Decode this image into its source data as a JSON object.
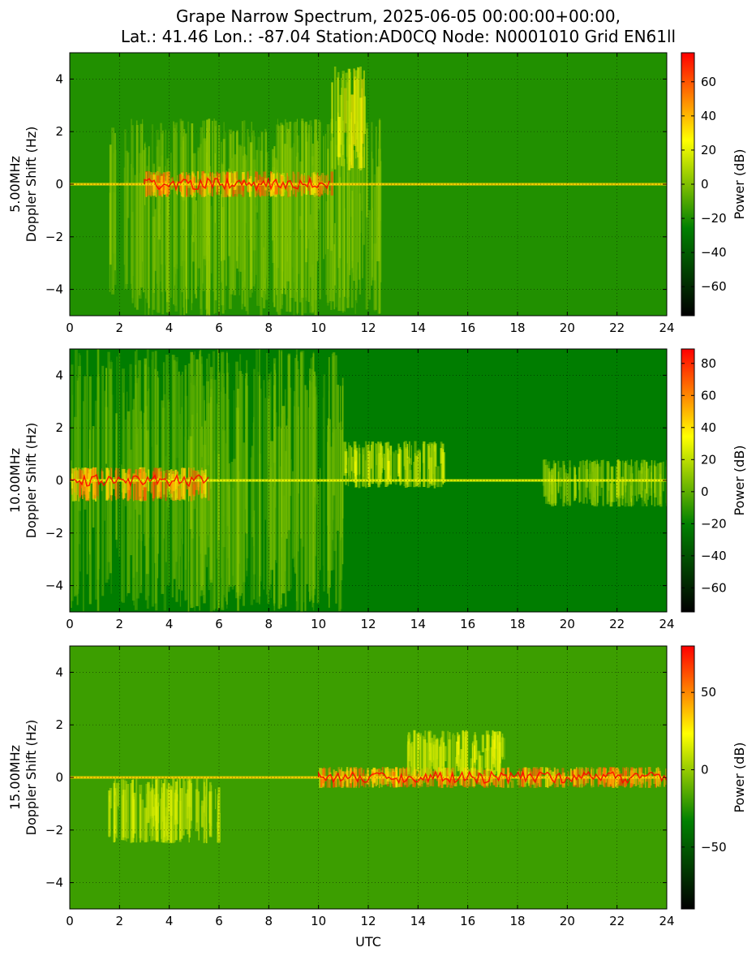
{
  "figure": {
    "title_line1": "Grape Narrow Spectrum, 2025-06-05 00:00:00+00:00,",
    "title_line2": "Lat.: 41.46 Lon.: -87.04 Station:AD0CQ Node: N0001010 Grid EN61ll",
    "xlabel": "UTC"
  },
  "chart_data": [
    {
      "type": "heatmap",
      "panel": "5.00MHz",
      "ylabel_line1": "5.00MHz",
      "ylabel_line2": "Doppler Shift (Hz)",
      "xlim": [
        0,
        24
      ],
      "ylim": [
        -5,
        5
      ],
      "xticks": [
        0,
        2,
        4,
        6,
        8,
        10,
        12,
        14,
        16,
        18,
        20,
        22,
        24
      ],
      "yticks": [
        -4,
        -2,
        0,
        2,
        4
      ],
      "grid": true,
      "colorbar": {
        "label": "Power (dB)",
        "range": [
          -77,
          77
        ],
        "ticks": [
          -60,
          -40,
          -20,
          0,
          20,
          40,
          60
        ],
        "colors": [
          "#000000",
          "#008000",
          "#ffff00",
          "#ff0000"
        ]
      },
      "carrier_hz": 0,
      "features": [
        {
          "utc": [
            1.5,
            12.5
          ],
          "doppler": [
            -5,
            2.5
          ],
          "power_db": 25,
          "desc": "broad spread"
        },
        {
          "utc": [
            10.5,
            11.8
          ],
          "doppler": [
            0.5,
            4.5
          ],
          "power_db": 45,
          "desc": "raised trace"
        },
        {
          "utc": [
            3,
            10.5
          ],
          "doppler": [
            -0.5,
            0.5
          ],
          "power_db": 70,
          "desc": "strong carrier"
        }
      ]
    },
    {
      "type": "heatmap",
      "panel": "10.00MHz",
      "ylabel_line1": "10.00MHz",
      "ylabel_line2": "Doppler Shift (Hz)",
      "xlim": [
        0,
        24
      ],
      "ylim": [
        -5,
        5
      ],
      "xticks": [
        0,
        2,
        4,
        6,
        8,
        10,
        12,
        14,
        16,
        18,
        20,
        22,
        24
      ],
      "yticks": [
        -4,
        -2,
        0,
        2,
        4
      ],
      "grid": true,
      "colorbar": {
        "label": "Power (dB)",
        "range": [
          -75,
          89
        ],
        "ticks": [
          -60,
          -40,
          -20,
          0,
          20,
          40,
          60,
          80
        ],
        "colors": [
          "#000000",
          "#008000",
          "#ffff00",
          "#ff0000"
        ]
      },
      "carrier_hz": 0,
      "features": [
        {
          "utc": [
            0,
            11
          ],
          "doppler": [
            -5,
            5
          ],
          "power_db": 30,
          "desc": "broad spread"
        },
        {
          "utc": [
            0,
            5.6
          ],
          "doppler": [
            -0.8,
            0.5
          ],
          "power_db": 80,
          "desc": "strong carrier"
        },
        {
          "utc": [
            11,
            15
          ],
          "doppler": [
            -0.3,
            1.5
          ],
          "power_db": 50,
          "desc": "raised trace"
        },
        {
          "utc": [
            19,
            24
          ],
          "doppler": [
            -1,
            0.8
          ],
          "power_db": 40,
          "desc": "spread"
        }
      ]
    },
    {
      "type": "heatmap",
      "panel": "15.00MHz",
      "ylabel_line1": "15.00MHz",
      "ylabel_line2": "Doppler Shift (Hz)",
      "xlim": [
        0,
        24
      ],
      "ylim": [
        -5,
        5
      ],
      "xticks": [
        0,
        2,
        4,
        6,
        8,
        10,
        12,
        14,
        16,
        18,
        20,
        22,
        24
      ],
      "yticks": [
        -4,
        -2,
        0,
        2,
        4
      ],
      "grid": true,
      "colorbar": {
        "label": "Power (dB)",
        "range": [
          -90,
          80
        ],
        "ticks": [
          -50,
          0,
          50
        ],
        "colors": [
          "#000000",
          "#008000",
          "#ffff00",
          "#ff0000"
        ]
      },
      "carrier_hz": 0,
      "features": [
        {
          "utc": [
            1.5,
            6
          ],
          "doppler": [
            -2.5,
            0
          ],
          "power_db": 35,
          "desc": "spread below carrier"
        },
        {
          "utc": [
            10,
            24
          ],
          "doppler": [
            -0.4,
            0.4
          ],
          "power_db": 70,
          "desc": "strong carrier"
        },
        {
          "utc": [
            13.5,
            17.5
          ],
          "doppler": [
            0,
            1.8
          ],
          "power_db": 40,
          "desc": "raised trace"
        }
      ]
    }
  ]
}
